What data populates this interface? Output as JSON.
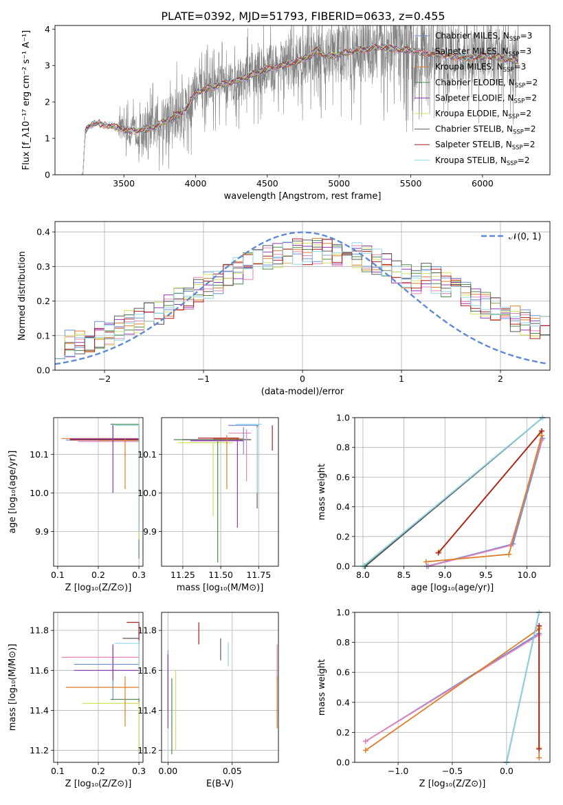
{
  "figure_title": "PLATE=0392, MJD=51793, FIBERID=0633, z=0.455",
  "series_colors": [
    "#6a8fd8",
    "#e582b8",
    "#e07b24",
    "#4a8c4a",
    "#9233b5",
    "#d4df5c",
    "#5a5a5a",
    "#b01c1c",
    "#8fd3e6"
  ],
  "chart_data": [
    {
      "id": "spectrum",
      "type": "line",
      "title": "PLATE=0392, MJD=51793, FIBERID=0633, z=0.455",
      "xlabel": "wavelength [Angstrom, rest frame]",
      "ylabel": "Flux [f_λ10⁻¹⁷ erg cm⁻² s⁻¹ A⁻¹]",
      "xlim": [
        3020,
        6470
      ],
      "ylim": [
        0,
        4.1
      ],
      "xticks": [
        "3500",
        "4000",
        "4500",
        "5000",
        "5500",
        "6000"
      ],
      "yticks": [
        "0",
        "1",
        "2",
        "3",
        "4"
      ],
      "legend_position": "right",
      "legend": [
        {
          "label": "Chabrier MILES, N_SSP=3",
          "base": "Chabrier MILES, N",
          "sub": "SSP",
          "tail": "=3"
        },
        {
          "label": "Salpeter MILES, N_SSP=3",
          "base": "Salpeter MILES, N",
          "sub": "SSP",
          "tail": "=3"
        },
        {
          "label": "Kroupa MILES, N_SSP=3",
          "base": "Kroupa MILES, N",
          "sub": "SSP",
          "tail": "=3"
        },
        {
          "label": "Chabrier ELODIE, N_SSP=2",
          "base": "Chabrier ELODIE, N",
          "sub": "SSP",
          "tail": "=2"
        },
        {
          "label": "Salpeter ELODIE, N_SSP=2",
          "base": "Salpeter ELODIE, N",
          "sub": "SSP",
          "tail": "=2"
        },
        {
          "label": "Kroupa ELODIE, N_SSP=2",
          "base": "Kroupa ELODIE, N",
          "sub": "SSP",
          "tail": "=2"
        },
        {
          "label": "Chabrier STELIB, N_SSP=2",
          "base": "Chabrier STELIB, N",
          "sub": "SSP",
          "tail": "=2"
        },
        {
          "label": "Salpeter STELIB, N_SSP=2",
          "base": "Salpeter STELIB, N",
          "sub": "SSP",
          "tail": "=2"
        },
        {
          "label": "Kroupa STELIB, N_SSP=2",
          "base": "Kroupa STELIB, N",
          "sub": "SSP",
          "tail": "=2"
        }
      ],
      "continuum": {
        "x": [
          3200,
          3215,
          3230,
          3260,
          3300,
          3350,
          3400,
          3450,
          3500,
          3550,
          3600,
          3650,
          3700,
          3750,
          3800,
          3850,
          3900,
          3950,
          4000,
          4050,
          4100,
          4150,
          4200,
          4300,
          4400,
          4500,
          4600,
          4700,
          4800,
          4850,
          4900,
          5000,
          5100,
          5200,
          5300,
          5400,
          5500,
          5600,
          5700,
          5800,
          5900,
          6000,
          6100,
          6200,
          6250
        ],
        "y": [
          0.0,
          0.0,
          1.2,
          1.35,
          1.42,
          1.38,
          1.35,
          1.3,
          1.25,
          1.2,
          1.22,
          1.24,
          1.3,
          1.4,
          1.5,
          1.6,
          1.7,
          1.9,
          2.25,
          2.32,
          2.4,
          2.45,
          2.5,
          2.6,
          2.75,
          2.9,
          3.0,
          3.1,
          3.25,
          3.45,
          3.25,
          3.3,
          3.4,
          3.45,
          3.5,
          3.45,
          3.4,
          3.35,
          3.3,
          3.25,
          3.2,
          3.25,
          3.25,
          3.15,
          3.1
        ]
      },
      "data_range": [
        3200,
        6250
      ]
    },
    {
      "id": "residuals",
      "type": "histogram",
      "xlabel": "(data-model)/error",
      "ylabel": "Normed distribution",
      "xlim": [
        -2.5,
        2.5
      ],
      "ylim": [
        0,
        0.43
      ],
      "xticks": [
        "−2",
        "−1",
        "0",
        "1",
        "2"
      ],
      "yticks": [
        "0.0",
        "0.1",
        "0.2",
        "0.3",
        "0.4"
      ],
      "legend": "𝒩(0, 1)",
      "legend_position": "top-right",
      "grid": true
    },
    {
      "id": "age-vs-Z",
      "type": "errorbar",
      "xlabel": "Z [log₁₀(Z/Z⊙)]",
      "ylabel": "age  [log₁₀(age/yr)]",
      "xlim": [
        0.09,
        0.31
      ],
      "ylim": [
        9.81,
        10.195
      ],
      "xticks": [
        "0.1",
        "0.2",
        "0.3"
      ],
      "yticks": [
        "9.9",
        "10.0",
        "10.1"
      ],
      "grid": true,
      "h": [
        [
          0.12,
          0.3,
          10.137
        ],
        [
          0.15,
          0.3,
          10.133
        ],
        [
          0.11,
          0.3,
          10.141
        ],
        [
          0.23,
          0.3,
          10.178
        ],
        [
          0.13,
          0.3,
          10.14
        ],
        [
          0.2,
          0.3,
          10.136
        ],
        [
          0.13,
          0.3,
          10.138
        ],
        [
          0.13,
          0.3,
          10.137
        ],
        [
          0.24,
          0.3,
          10.175
        ]
      ],
      "v": [
        [
          0.236,
          10.13,
          10.18
        ],
        [
          0.3,
          9.88,
          10.18
        ],
        [
          0.266,
          10.01,
          10.14
        ],
        [
          0.3,
          9.83,
          10.175
        ],
        [
          0.236,
          10.0,
          10.175
        ],
        [
          0.3,
          9.88,
          10.17
        ],
        [
          0.3,
          9.9,
          10.175
        ],
        [
          0.3,
          9.92,
          10.14
        ],
        [
          0.3,
          9.9,
          10.18
        ]
      ]
    },
    {
      "id": "age-vs-mass",
      "type": "errorbar",
      "xlabel": "mass [log₁₀(M/M⊙)]",
      "ylabel": "",
      "xlim": [
        11.11,
        11.88
      ],
      "ylim": [
        9.81,
        10.195
      ],
      "xticks": [
        "11.25",
        "11.50",
        "11.75"
      ],
      "yticks": [
        "9.9",
        "10.0",
        "10.1"
      ],
      "grid": true,
      "h": [
        [
          11.55,
          11.75,
          10.175
        ],
        [
          11.55,
          11.7,
          10.155
        ],
        [
          11.45,
          11.65,
          10.14
        ],
        [
          11.19,
          11.7,
          10.138
        ],
        [
          11.3,
          11.65,
          10.135
        ],
        [
          11.22,
          11.58,
          10.13
        ],
        [
          11.25,
          11.7,
          10.138
        ],
        [
          11.35,
          11.62,
          10.142
        ],
        [
          11.6,
          11.77,
          10.178
        ]
      ],
      "v": [
        [
          11.65,
          10.1,
          10.17
        ],
        [
          11.67,
          10.03,
          10.165
        ],
        [
          11.54,
          10.01,
          10.15
        ],
        [
          11.48,
          9.82,
          10.14
        ],
        [
          11.61,
          9.91,
          10.14
        ],
        [
          11.45,
          9.94,
          10.13
        ],
        [
          11.74,
          9.96,
          10.175
        ],
        [
          11.84,
          10.11,
          10.175
        ],
        [
          11.74,
          10.0,
          10.17
        ]
      ]
    },
    {
      "id": "mass-weight-vs-age",
      "type": "line",
      "xlabel": "age  [log₁₀(age/yr)]",
      "ylabel": "mass weight",
      "xlim": [
        7.9,
        10.28
      ],
      "ylim": [
        0,
        1.0
      ],
      "xticks": [
        "8.0",
        "8.5",
        "9.0",
        "9.5",
        "10.0"
      ],
      "yticks": [
        "0.0",
        "0.2",
        "0.4",
        "0.6",
        "0.8",
        "1.0"
      ],
      "grid": true,
      "series": [
        {
          "x": [
            8.78,
            9.83,
            10.19
          ],
          "y": [
            0.0,
            0.15,
            0.86
          ]
        },
        {
          "x": [
            8.8,
            9.8,
            10.18
          ],
          "y": [
            0.0,
            0.14,
            0.85
          ]
        },
        {
          "x": [
            8.77,
            9.78,
            10.18
          ],
          "y": [
            0.03,
            0.08,
            0.88
          ]
        },
        {
          "x": [
            8.02,
            10.19
          ],
          "y": [
            0.0,
            1.0
          ]
        },
        {
          "x": [
            8.92,
            10.18
          ],
          "y": [
            0.09,
            0.91
          ]
        },
        {
          "x": [
            8.93,
            10.17
          ],
          "y": [
            0.1,
            0.9
          ]
        },
        {
          "x": [
            8.03,
            10.19
          ],
          "y": [
            0.0,
            1.0
          ]
        },
        {
          "x": [
            8.92,
            10.18
          ],
          "y": [
            0.09,
            0.91
          ]
        },
        {
          "x": [
            8.0,
            10.19
          ],
          "y": [
            0.0,
            1.0
          ]
        }
      ]
    },
    {
      "id": "mass-vs-Z",
      "type": "errorbar",
      "xlabel": "Z [log₁₀(Z/Z⊙)]",
      "ylabel": "mass [log₁₀(M/M⊙)]",
      "xlim": [
        0.09,
        0.31
      ],
      "ylim": [
        11.14,
        11.89
      ],
      "xticks": [
        "0.1",
        "0.2",
        "0.3"
      ],
      "yticks": [
        "11.2",
        "11.4",
        "11.6",
        "11.8"
      ],
      "grid": true,
      "h": [
        [
          0.14,
          0.3,
          11.63
        ],
        [
          0.11,
          0.3,
          11.665
        ],
        [
          0.12,
          0.3,
          11.515
        ],
        [
          0.23,
          0.3,
          11.455
        ],
        [
          0.14,
          0.3,
          11.6
        ],
        [
          0.16,
          0.3,
          11.435
        ],
        [
          0.26,
          0.3,
          11.76
        ],
        [
          0.27,
          0.3,
          11.84
        ],
        [
          0.24,
          0.3,
          11.735
        ]
      ],
      "v": [
        [
          0.236,
          11.45,
          11.68
        ],
        [
          0.236,
          11.57,
          11.73
        ],
        [
          0.266,
          11.32,
          11.57
        ],
        [
          0.3,
          11.2,
          11.46
        ],
        [
          0.236,
          11.55,
          11.73
        ],
        [
          0.3,
          11.2,
          11.44
        ],
        [
          0.3,
          11.63,
          11.76
        ],
        [
          0.3,
          11.73,
          11.84
        ],
        [
          0.3,
          11.62,
          11.75
        ]
      ]
    },
    {
      "id": "mass-vs-ebv",
      "type": "errorbar",
      "xlabel": "E(B-V)",
      "ylabel": "",
      "xlim": [
        -0.005,
        0.086
      ],
      "ylim": [
        11.14,
        11.89
      ],
      "xticks": [
        "0.00",
        "0.05"
      ],
      "yticks": [
        "11.2",
        "11.4",
        "11.6",
        "11.8"
      ],
      "grid": true,
      "h": [],
      "v": [
        [
          0.0,
          11.4,
          11.7
        ],
        [
          0.085,
          11.55,
          11.73
        ],
        [
          0.085,
          11.31,
          11.57
        ],
        [
          0.003,
          11.18,
          11.56
        ],
        [
          0.0,
          11.31,
          11.68
        ],
        [
          0.006,
          11.2,
          11.6
        ],
        [
          0.041,
          11.65,
          11.76
        ],
        [
          0.024,
          11.73,
          11.84
        ],
        [
          0.047,
          11.62,
          11.74
        ]
      ]
    },
    {
      "id": "mass-weight-vs-Z",
      "type": "line",
      "xlabel": "Z [log₁₀(Z/Z⊙)]",
      "ylabel": "mass weight",
      "xlim": [
        -1.4,
        0.4
      ],
      "ylim": [
        0,
        1.0
      ],
      "xticks": [
        "−1.0",
        "−0.5",
        "0.0"
      ],
      "yticks": [
        "0.0",
        "0.2",
        "0.4",
        "0.6",
        "0.8",
        "1.0"
      ],
      "grid": true,
      "series": [
        {
          "x": [
            -1.3,
            0.3
          ],
          "y": [
            0.14,
            0.86
          ]
        },
        {
          "x": [
            -1.3,
            0.3
          ],
          "y": [
            0.14,
            0.85
          ]
        },
        {
          "x": [
            -1.3,
            0.3,
            0.3
          ],
          "y": [
            0.08,
            0.89,
            0.03
          ]
        },
        {
          "x": [
            0.0,
            0.3
          ],
          "y": [
            0.0,
            1.0
          ]
        },
        {
          "x": [
            0.3,
            0.3
          ],
          "y": [
            0.09,
            0.91
          ]
        },
        {
          "x": [
            0.3,
            0.3
          ],
          "y": [
            0.1,
            0.9
          ]
        },
        {
          "x": [
            0.0,
            0.3
          ],
          "y": [
            0.0,
            1.0
          ]
        },
        {
          "x": [
            0.3,
            0.3
          ],
          "y": [
            0.09,
            0.91
          ]
        },
        {
          "x": [
            0.0,
            0.3
          ],
          "y": [
            0.0,
            1.0
          ]
        }
      ]
    }
  ]
}
